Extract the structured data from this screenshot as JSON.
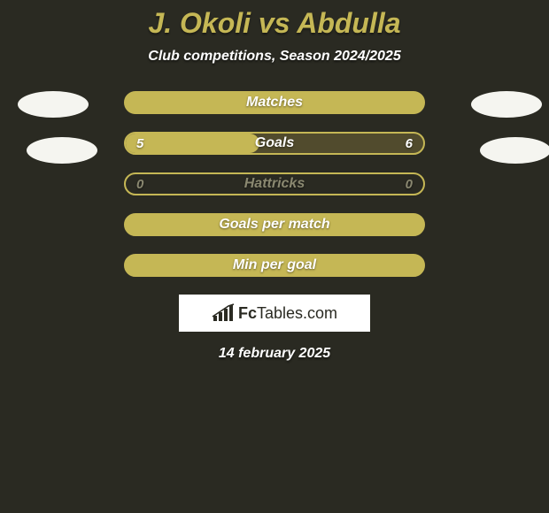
{
  "title": "J. Okoli vs Abdulla",
  "subtitle": "Club competitions, Season 2024/2025",
  "date": "14 february 2025",
  "brand": {
    "name_bold": "Fc",
    "name_rest": "Tables.com",
    "icon": "bar-chart-icon"
  },
  "colors": {
    "background": "#2a2a22",
    "accent": "#c5b755",
    "dim_accent": "#514b2d",
    "label_full": "#ffffff",
    "label_dim": "#8a8870",
    "value_text": "#ffffff",
    "border": "#c5b755",
    "avatar": "#f5f5f0"
  },
  "avatars": {
    "left_top": true,
    "left_bottom": true,
    "right_top": true,
    "right_bottom": true
  },
  "rows": [
    {
      "label": "Matches",
      "left_value": "",
      "right_value": "",
      "fill": "full",
      "fill_color": "#c5b755",
      "border_color": "#c5b755",
      "label_color": "#ffffff",
      "value_color": "#ffffff",
      "track_color": "#c5b755"
    },
    {
      "label": "Goals",
      "left_value": "5",
      "right_value": "6",
      "fill": "split",
      "left_pct": 45,
      "right_pct": 55,
      "left_fill_color": "#c5b755",
      "right_fill_color": "#514b2d",
      "border_color": "#c5b755",
      "label_color": "#ffffff",
      "value_color": "#ffffff",
      "track_color": "#514b2d"
    },
    {
      "label": "Hattricks",
      "left_value": "0",
      "right_value": "0",
      "fill": "none",
      "border_color": "#c5b755",
      "label_color": "#8a8870",
      "value_color": "#8a8870",
      "track_color": "transparent"
    },
    {
      "label": "Goals per match",
      "left_value": "",
      "right_value": "",
      "fill": "full",
      "fill_color": "#c5b755",
      "border_color": "#c5b755",
      "label_color": "#ffffff",
      "value_color": "#ffffff",
      "track_color": "#c5b755"
    },
    {
      "label": "Min per goal",
      "left_value": "",
      "right_value": "",
      "fill": "full",
      "fill_color": "#c5b755",
      "border_color": "#c5b755",
      "label_color": "#ffffff",
      "value_color": "#ffffff",
      "track_color": "#c5b755"
    }
  ]
}
